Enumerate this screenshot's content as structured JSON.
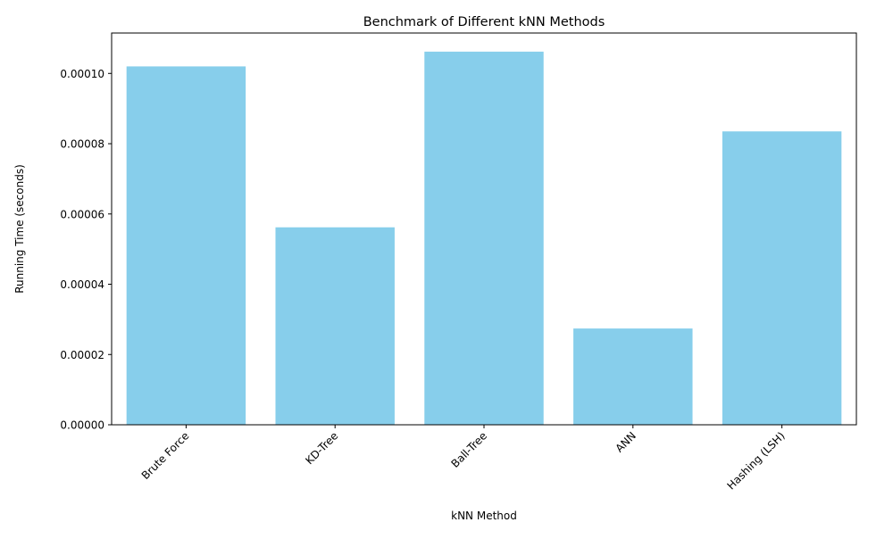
{
  "chart_data": {
    "type": "bar",
    "title": "Benchmark of Different kNN Methods",
    "xlabel": "kNN Method",
    "ylabel": "Running Time (seconds)",
    "categories": [
      "Brute Force",
      "KD-Tree",
      "Ball-Tree",
      "ANN",
      "Hashing (LSH)"
    ],
    "values": [
      0.000102,
      5.62e-05,
      0.0001062,
      2.74e-05,
      8.35e-05
    ],
    "ylim": [
      0,
      0.0001115
    ],
    "yticks": [
      0.0,
      2e-05,
      4e-05,
      6e-05,
      8e-05,
      0.0001
    ],
    "ytick_labels": [
      "0.00000",
      "0.00002",
      "0.00004",
      "0.00006",
      "0.00008",
      "0.00010"
    ],
    "bar_color": "#87ceeb",
    "grid": false,
    "legend": "none"
  }
}
